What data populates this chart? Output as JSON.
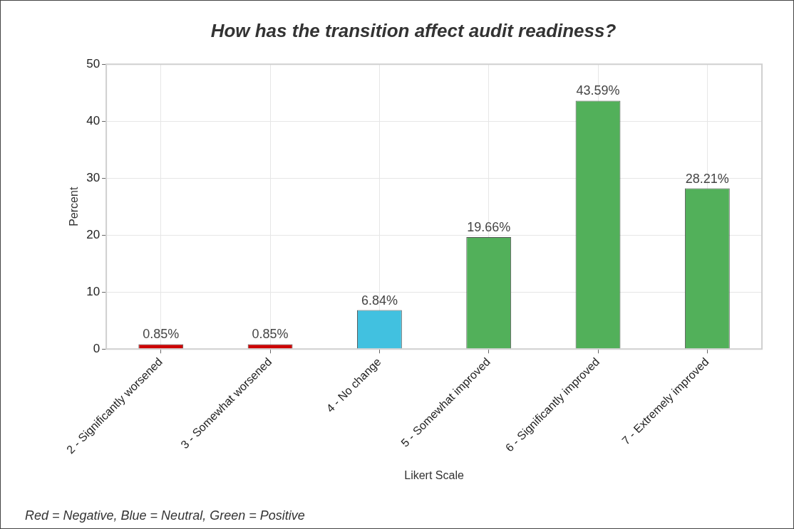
{
  "chart_data": {
    "type": "bar",
    "title": "How has the transition affect audit readiness?",
    "xlabel": "Likert Scale",
    "ylabel": "Percent",
    "categories": [
      "2 - Significantly worsened",
      "3 - Somewhat worsened",
      "4 - No change",
      "5 - Somewhat improved",
      "6 - Significantly improved",
      "7 - Extremely improved"
    ],
    "values": [
      0.85,
      0.85,
      6.84,
      19.66,
      43.59,
      28.21
    ],
    "colors": [
      "#cc0000",
      "#cc0000",
      "#41c1e0",
      "#52b05a",
      "#52b05a",
      "#52b05a"
    ],
    "value_labels": [
      "0.85%",
      "0.85%",
      "6.84%",
      "19.66%",
      "43.59%",
      "28.21%"
    ],
    "ylim": [
      0,
      50
    ],
    "yticks": [
      0,
      10,
      20,
      30,
      40,
      50
    ],
    "grid": true,
    "legend": false,
    "annotations": [
      "Red = Negative, Blue = Neutral, Green = Positive"
    ]
  }
}
